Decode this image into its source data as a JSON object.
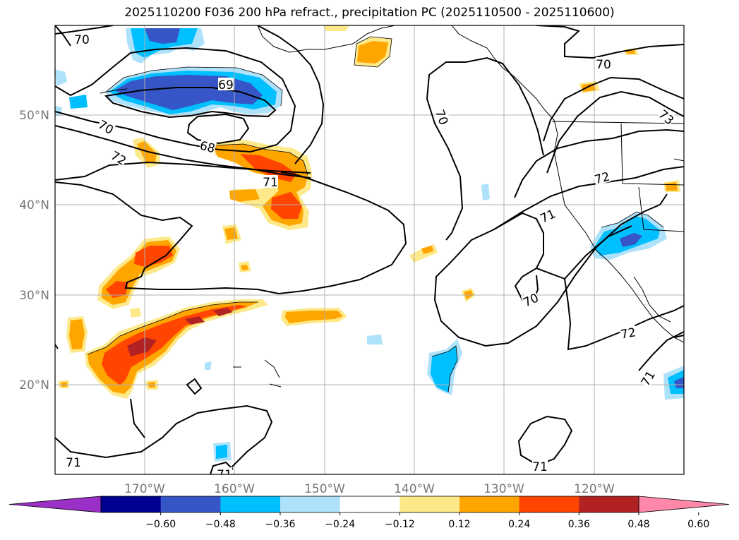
{
  "title": "2025110200 F036 200 hPa refract., precipitation PC (2025110500 - 2025110600)",
  "map": {
    "lat_ticks": [
      "50°N",
      "40°N",
      "30°N",
      "20°N"
    ],
    "lon_ticks": [
      "170°W",
      "160°W",
      "150°W",
      "140°W",
      "130°W",
      "120°W"
    ],
    "contour_labels": [
      {
        "name": "contour-label-70-nw",
        "text": "70"
      },
      {
        "name": "contour-label-69",
        "text": "69"
      },
      {
        "name": "contour-label-70-w",
        "text": "70"
      },
      {
        "name": "contour-label-68",
        "text": "68"
      },
      {
        "name": "contour-label-72-w",
        "text": "72"
      },
      {
        "name": "contour-label-71-center",
        "text": "71"
      },
      {
        "name": "contour-label-70-ne",
        "text": "70"
      },
      {
        "name": "contour-label-70-gulf",
        "text": "70"
      },
      {
        "name": "contour-label-73",
        "text": "73"
      },
      {
        "name": "contour-label-72-e",
        "text": "72"
      },
      {
        "name": "contour-label-71-e",
        "text": "71"
      },
      {
        "name": "contour-label-70-se",
        "text": "70"
      },
      {
        "name": "contour-label-72-se",
        "text": "72"
      },
      {
        "name": "contour-label-71-se",
        "text": "71"
      },
      {
        "name": "contour-label-71-sw",
        "text": "71"
      },
      {
        "name": "contour-label-71-s",
        "text": "71"
      },
      {
        "name": "contour-label-71-bottom",
        "text": "71"
      }
    ]
  },
  "colorbar": {
    "tick_labels": [
      "−0.60",
      "−0.48",
      "−0.36",
      "−0.24",
      "−0.12",
      "0.12",
      "0.24",
      "0.36",
      "0.48",
      "0.60"
    ],
    "colors": [
      "#9a30c8",
      "#000090",
      "#3656c8",
      "#00bfff",
      "#aee1fa",
      "#ffffff",
      "#fde98a",
      "#ffa500",
      "#ff4500",
      "#b22222",
      "#ff88aa"
    ]
  }
}
